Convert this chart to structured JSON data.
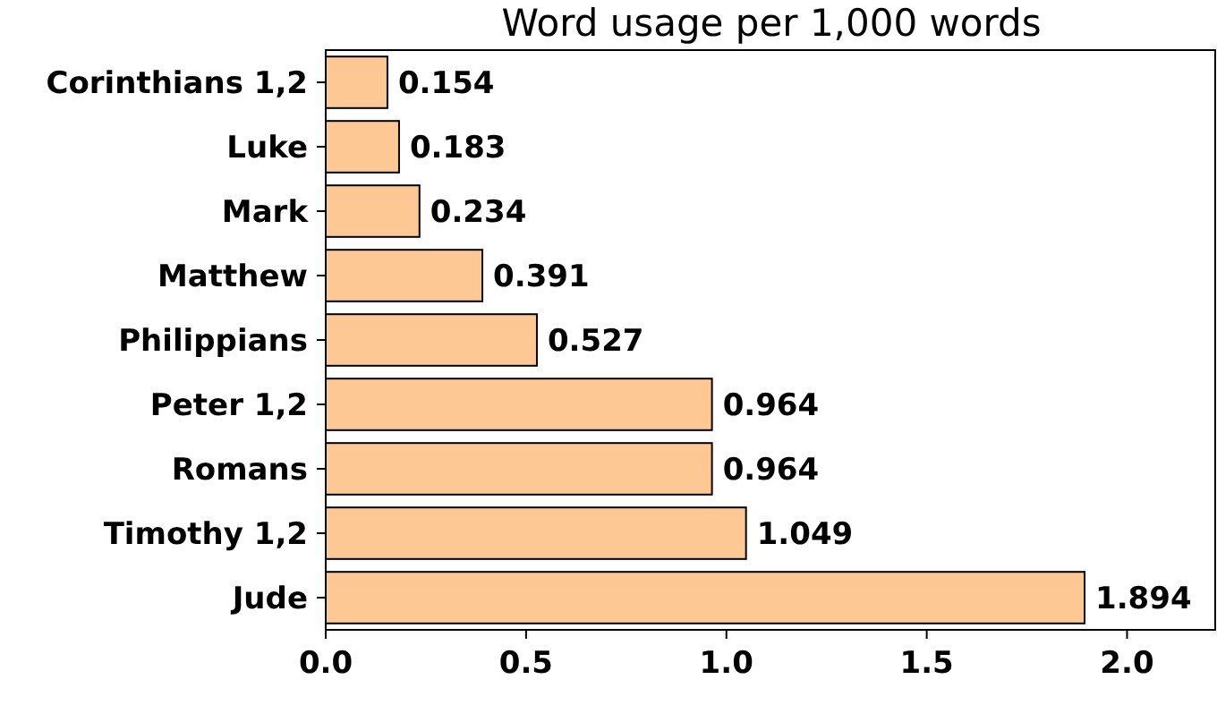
{
  "chart_data": {
    "type": "bar",
    "title": "Word usage per 1,000 words",
    "orientation": "horizontal",
    "categories": [
      "Corinthians 1,2",
      "Luke",
      "Mark",
      "Matthew",
      "Philippians",
      "Peter 1,2",
      "Romans",
      "Timothy 1,2",
      "Jude"
    ],
    "values": [
      0.154,
      0.183,
      0.234,
      0.391,
      0.527,
      0.964,
      0.964,
      1.049,
      1.894
    ],
    "color": "#fdc894",
    "data_labels": true,
    "xlim": [
      0,
      2.22
    ],
    "xticks": [
      {
        "value": 0,
        "label": "0.0"
      },
      {
        "value": 0.5,
        "label": "0.5"
      },
      {
        "value": 1,
        "label": "1.0"
      },
      {
        "value": 1.5,
        "label": "1.5"
      },
      {
        "value": 2,
        "label": "2.0"
      }
    ],
    "grid": false
  }
}
